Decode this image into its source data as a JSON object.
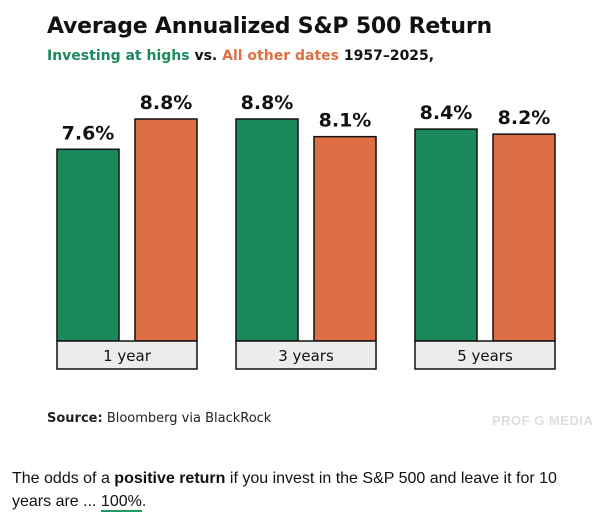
{
  "chart_data": {
    "type": "bar",
    "title": "Average Annualized S&P 500 Return",
    "subtitle_parts": {
      "series1": "Investing at highs",
      "vs": "vs.",
      "series2": "All other dates",
      "period": "1957–2025,"
    },
    "categories": [
      "1 year",
      "3 years",
      "5 years"
    ],
    "series": [
      {
        "name": "Investing at highs",
        "color": "#1a8a5c",
        "values": [
          7.6,
          8.8,
          8.4
        ],
        "labels": [
          "7.6%",
          "8.8%",
          "8.4%"
        ]
      },
      {
        "name": "All other dates",
        "color": "#de6f45",
        "values": [
          8.8,
          8.1,
          8.2
        ],
        "labels": [
          "8.8%",
          "8.1%",
          "8.2%"
        ]
      }
    ],
    "ylim": [
      0,
      8.8
    ],
    "grid": false,
    "xlabel": "",
    "ylabel": ""
  },
  "source": {
    "label": "Source:",
    "text": "Bloomberg via BlackRock"
  },
  "watermark": "PROF G MEDIA",
  "caption": {
    "part1": "The odds of a ",
    "bold": "positive return",
    "part2": " if you invest in the S&P 500 and leave it for 10 years are ... ",
    "link": "100%",
    "part3": "."
  },
  "colors": {
    "highs": "#1a8a5c",
    "other": "#de6f45",
    "label_bg": "#ececec",
    "outline": "#111111"
  }
}
